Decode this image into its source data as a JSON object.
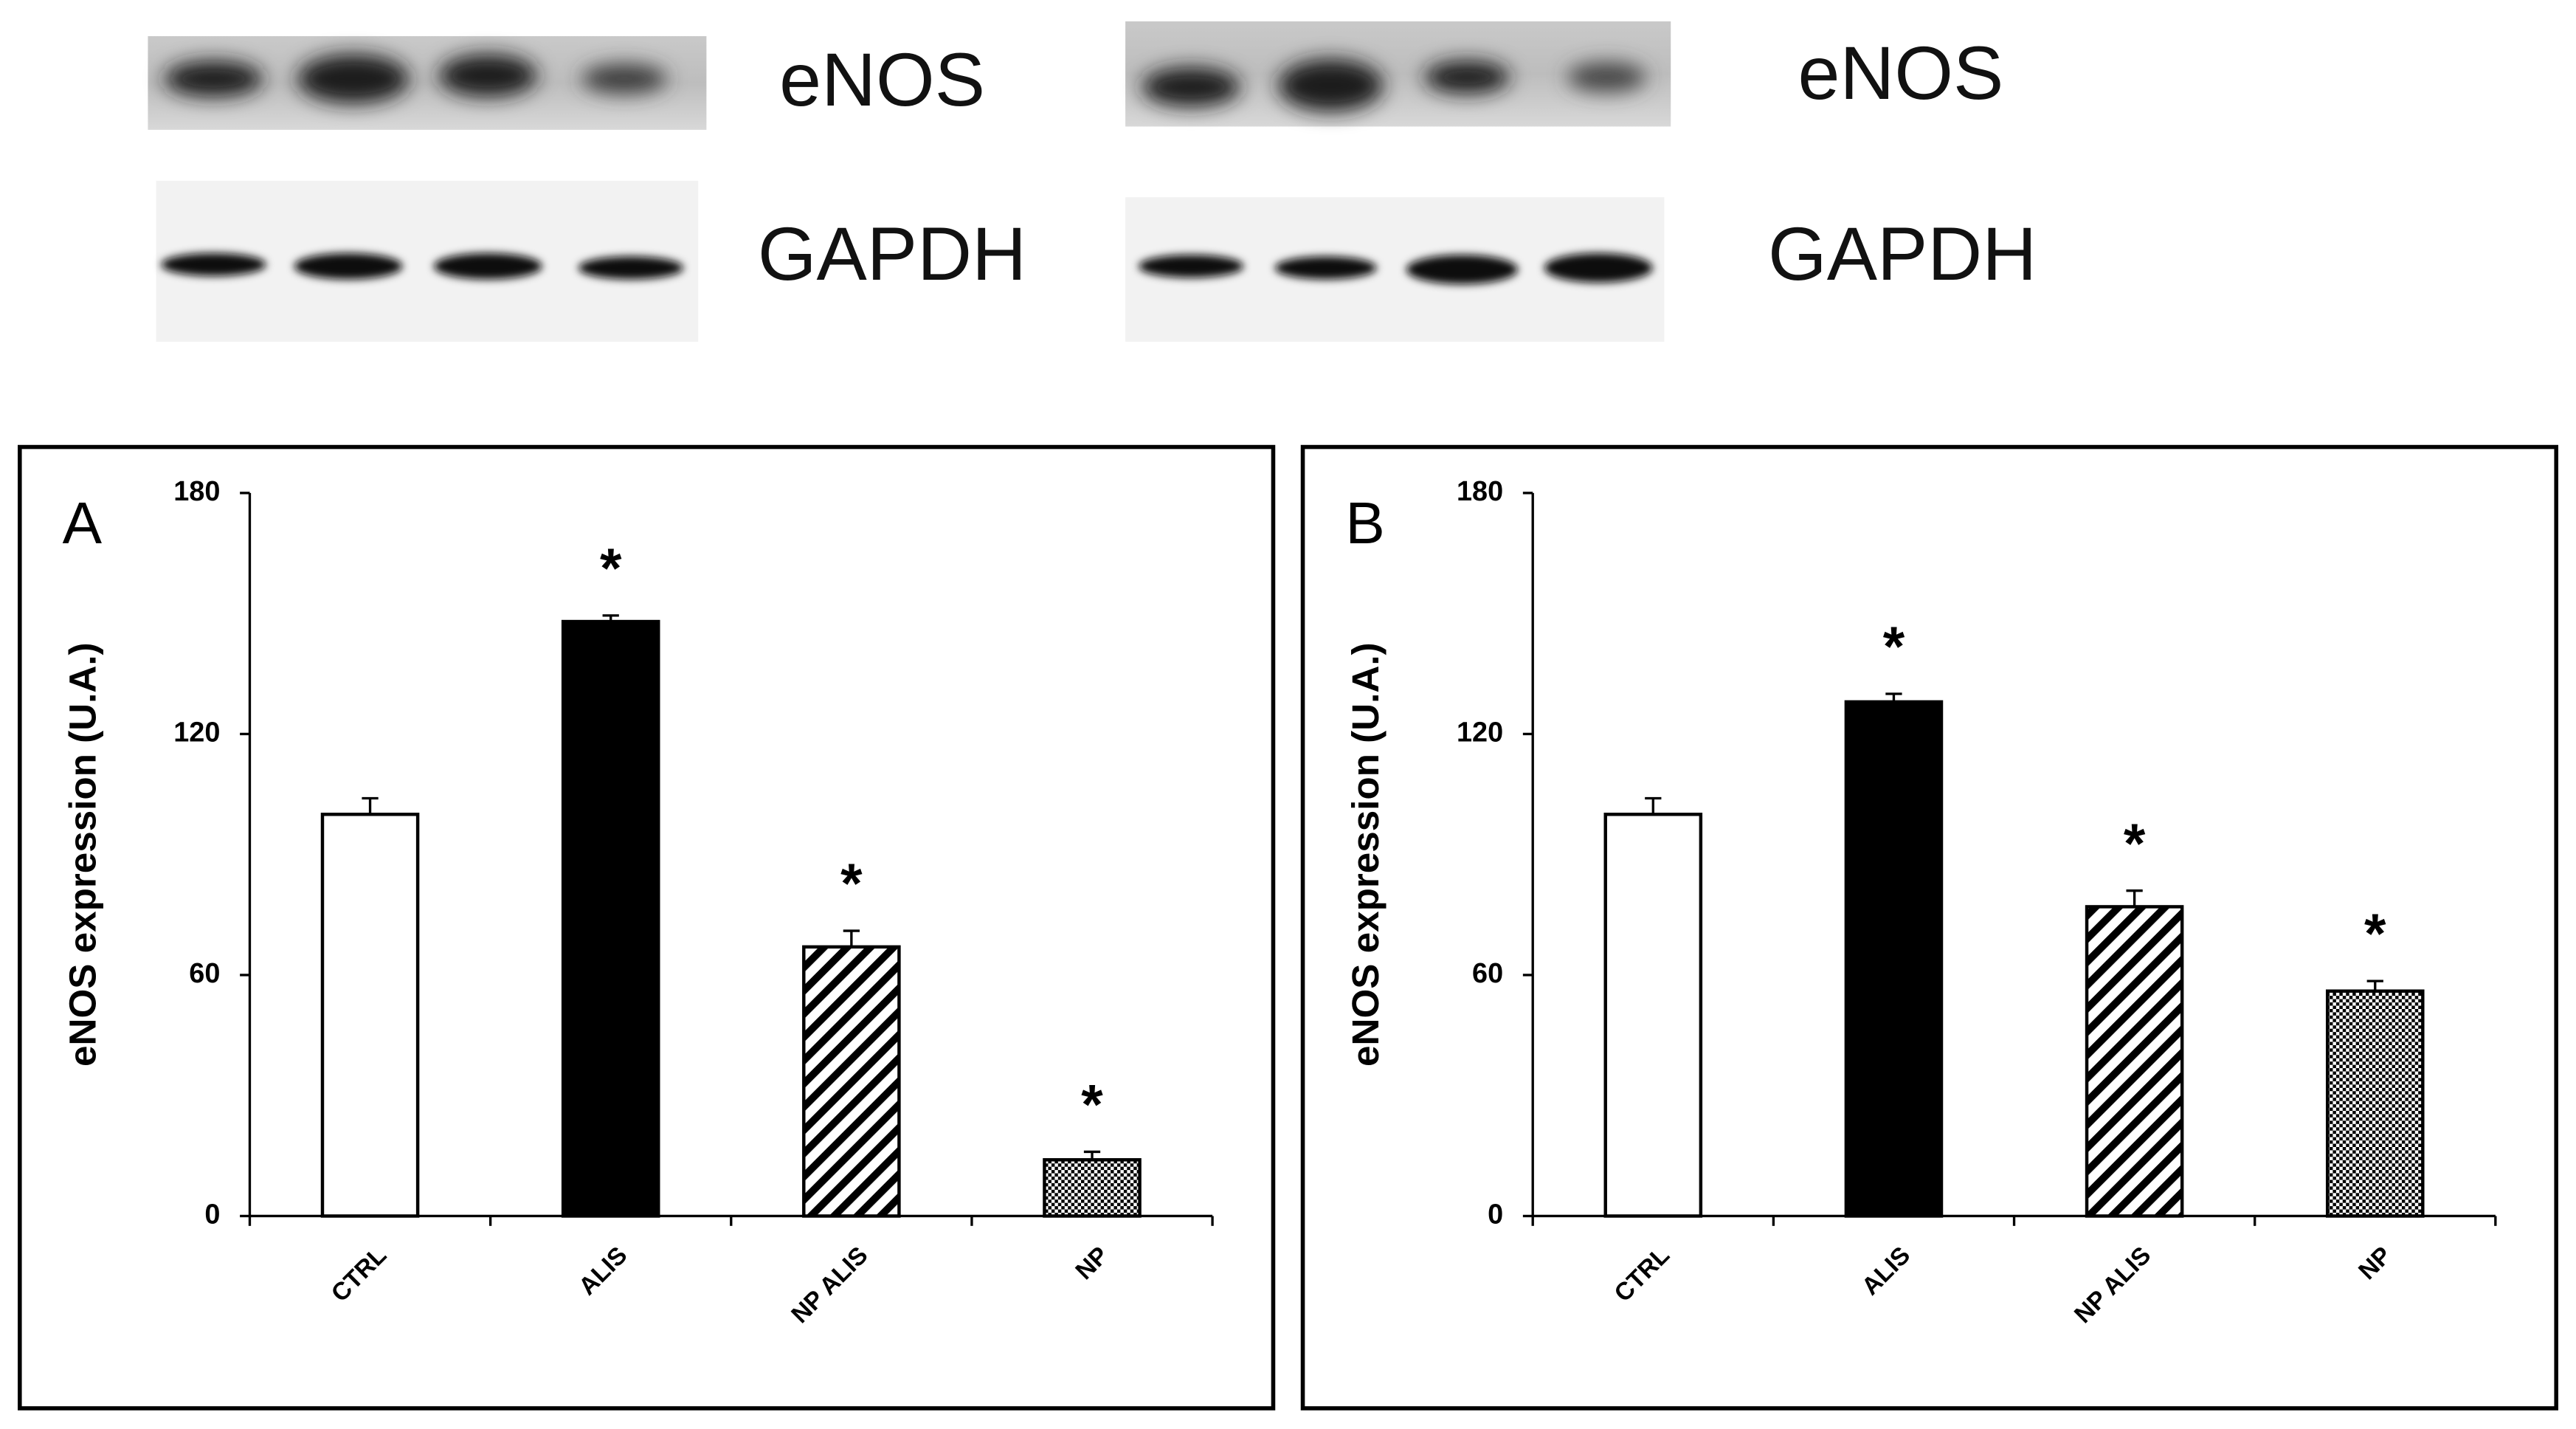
{
  "blots": [
    {
      "labels": [
        "eNOS",
        "GAPDH"
      ]
    },
    {
      "labels": [
        "eNOS",
        "GAPDH"
      ]
    }
  ],
  "chart_data": [
    {
      "type": "bar",
      "panel_label": "A",
      "y_label": "eNOS expression (U.A.)",
      "categories": [
        "CTRL",
        "ALIS",
        "NP ALIS",
        "NP"
      ],
      "series": [
        {
          "values": [
            100,
            148,
            67,
            14
          ],
          "errors": [
            4,
            1.5,
            4,
            2
          ],
          "fills": [
            "white",
            "black",
            "hatch",
            "checker"
          ]
        }
      ],
      "ylim": [
        0,
        180
      ],
      "yticks": [
        0,
        60,
        120,
        180
      ],
      "annotations": [
        {
          "category": "ALIS",
          "text": "*"
        },
        {
          "category": "NP ALIS",
          "text": "*"
        },
        {
          "category": "NP",
          "text": "*"
        }
      ]
    },
    {
      "type": "bar",
      "panel_label": "B",
      "y_label": "eNOS expression (U.A.)",
      "categories": [
        "CTRL",
        "ALIS",
        "NP ALIS",
        "NP"
      ],
      "series": [
        {
          "values": [
            100,
            128,
            77,
            56
          ],
          "errors": [
            4,
            2,
            4,
            2.5
          ],
          "fills": [
            "white",
            "black",
            "hatch",
            "checker"
          ]
        }
      ],
      "ylim": [
        0,
        180
      ],
      "yticks": [
        0,
        60,
        120,
        180
      ],
      "annotations": [
        {
          "category": "ALIS",
          "text": "*"
        },
        {
          "category": "NP ALIS",
          "text": "*"
        },
        {
          "category": "NP",
          "text": "*"
        }
      ]
    }
  ]
}
